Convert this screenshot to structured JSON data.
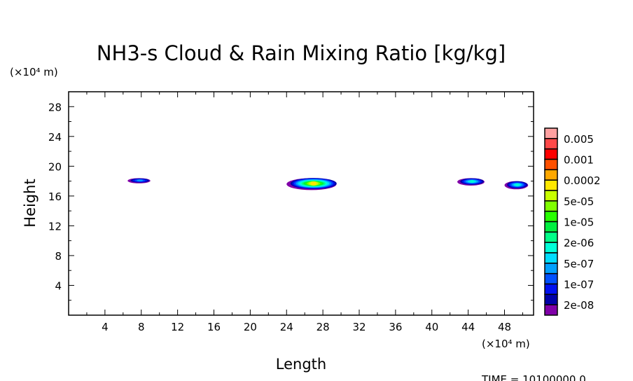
{
  "chart_data": {
    "type": "heatmap",
    "title": "NH3-s Cloud & Rain Mixing Ratio [kg/kg]",
    "xlabel": "Length",
    "ylabel": "Height",
    "x_unit": "(×10⁴ m)",
    "y_unit": "(×10⁴ m)",
    "xlim": [
      0,
      51.2
    ],
    "ylim": [
      0,
      30
    ],
    "xticks": [
      4,
      8,
      12,
      16,
      20,
      24,
      28,
      32,
      36,
      40,
      44,
      48
    ],
    "yticks": [
      4,
      8,
      12,
      16,
      20,
      24,
      28
    ],
    "time_label": "TIME =  10100000.0",
    "colorbar": {
      "labels": [
        "0.005",
        "0.001",
        "0.0002",
        "5e-05",
        "1e-05",
        "2e-06",
        "5e-07",
        "1e-07",
        "2e-08"
      ],
      "colors": [
        "#ffa0a0",
        "#ff4848",
        "#ff0000",
        "#ff5000",
        "#ffa800",
        "#ffe800",
        "#c8ff00",
        "#80ff00",
        "#28ff00",
        "#00f040",
        "#00ff88",
        "#00ffd8",
        "#00dcff",
        "#00a0ff",
        "#0050ff",
        "#0010f0",
        "#0000a8",
        "#8000a8"
      ]
    },
    "features": [
      {
        "name": "cloud-1",
        "x": [
          6.5,
          9.0
        ],
        "y": [
          17.7,
          18.4
        ],
        "peak_level": "5e-07"
      },
      {
        "name": "cloud-2",
        "x": [
          24.0,
          29.5
        ],
        "y": [
          16.8,
          18.4
        ],
        "peak_level": "0.0002"
      },
      {
        "name": "cloud-3",
        "x": [
          42.8,
          45.8
        ],
        "y": [
          17.4,
          18.4
        ],
        "peak_level": "2e-06"
      },
      {
        "name": "cloud-4",
        "x": [
          48.0,
          50.6
        ],
        "y": [
          16.9,
          18.0
        ],
        "peak_level": "2e-06"
      }
    ]
  }
}
